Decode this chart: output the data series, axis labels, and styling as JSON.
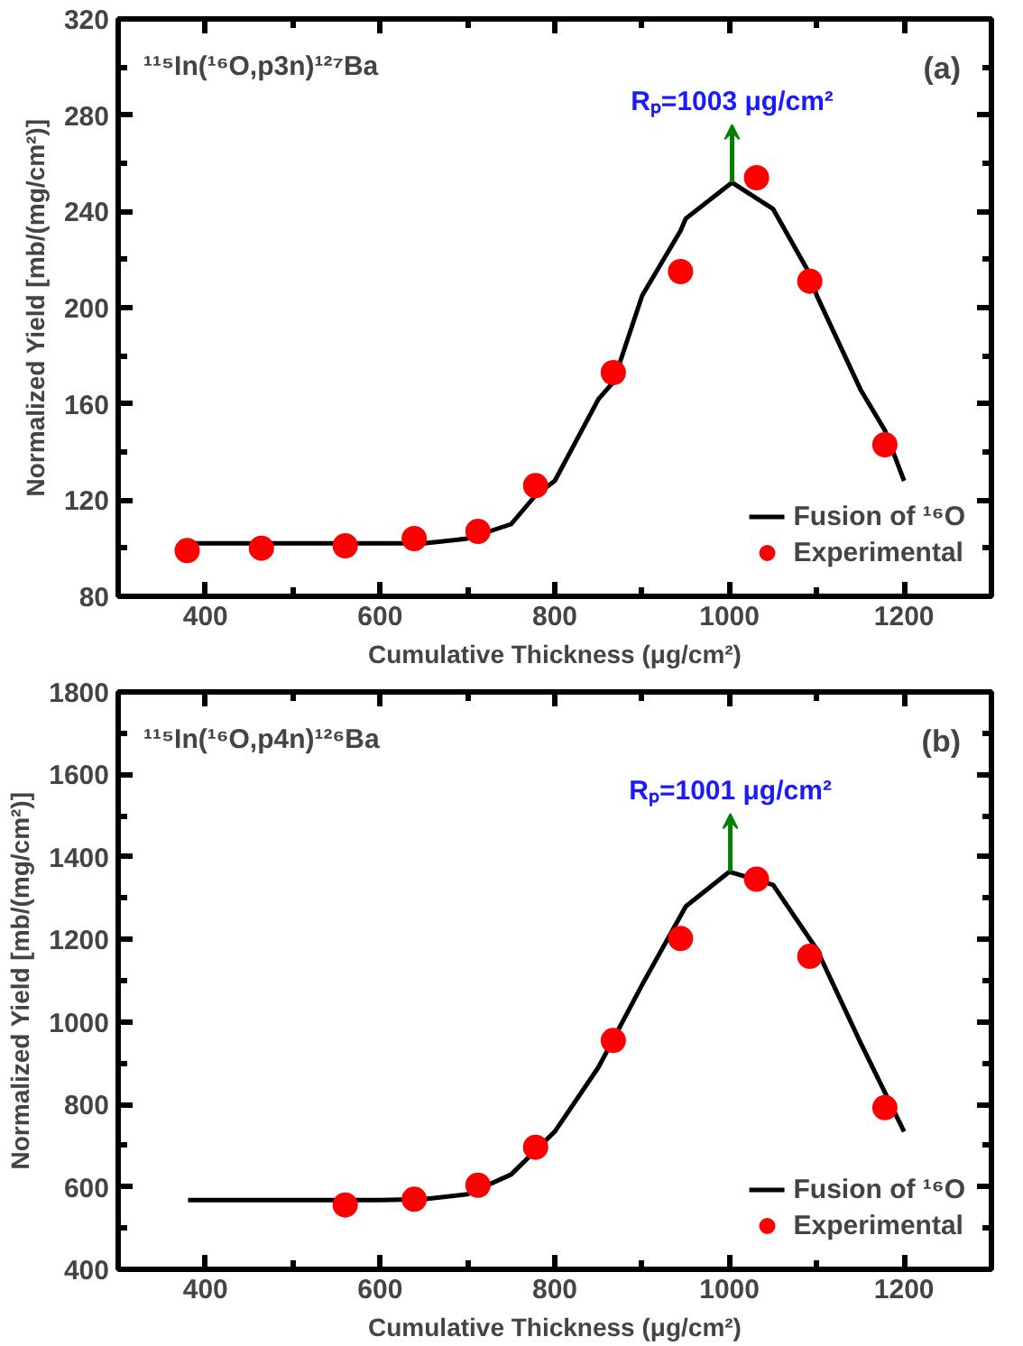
{
  "chart_data": [
    {
      "type": "scatter",
      "xlabel": "Cumulative Thickness (μg/cm²)",
      "ylabel": "Normalized Yield [mb/(mg/cm²)]",
      "xlim": [
        300,
        1300
      ],
      "xticks": [
        {
          "value": 300,
          "label": null
        },
        400,
        {
          "value": 500,
          "label": null
        },
        600,
        {
          "value": 700,
          "label": null
        },
        800,
        {
          "value": 900,
          "label": null
        },
        1000,
        {
          "value": 1100,
          "label": null
        },
        1200,
        {
          "value": 1300,
          "label": null
        }
      ],
      "ylim": [
        80,
        320
      ],
      "yticks": [
        80,
        {
          "value": 100,
          "label": null
        },
        120,
        {
          "value": 140,
          "label": null
        },
        160,
        {
          "value": 180,
          "label": null
        },
        200,
        {
          "value": 220,
          "label": null
        },
        240,
        {
          "value": 260,
          "label": null
        },
        280,
        {
          "value": 300,
          "label": null
        },
        320
      ],
      "grid": false,
      "legend": "bottom right",
      "series": [
        {
          "name": "Fusion of ¹⁶O",
          "type": "line",
          "color": "#000000",
          "marker": "none",
          "line_style": "solid",
          "x": [
            380,
            500,
            600,
            650,
            700,
            750,
            778,
            800,
            850,
            867,
            900,
            944,
            950,
            1003,
            1050,
            1092,
            1100,
            1150,
            1178,
            1200
          ],
          "values": [
            102,
            102,
            102,
            102,
            104,
            110,
            122,
            128,
            162,
            169,
            205,
            232,
            237,
            252,
            241,
            214,
            205,
            166,
            149,
            128
          ]
        },
        {
          "name": "Experimental",
          "color": "#ff0000",
          "marker": "circle",
          "x": [
            379,
            464,
            560,
            639,
            712,
            778,
            867,
            944,
            1031,
            1092,
            1178
          ],
          "values": [
            99,
            100,
            101,
            104,
            107,
            126,
            173,
            215,
            254,
            211,
            143
          ]
        }
      ],
      "annotations": [
        "¹¹⁵In(¹⁶O,p3n)¹²⁷Ba",
        "(a)",
        {
          "text": "Rₚ=1003 μg/cm²",
          "x": 1003,
          "y": 252
        }
      ]
    },
    {
      "type": "scatter",
      "xlabel": "Cumulative Thickness (μg/cm²)",
      "ylabel": "Normalized Yield [mb/(mg/cm²)]",
      "xlim": [
        300,
        1300
      ],
      "xticks": [
        {
          "value": 300,
          "label": null
        },
        400,
        {
          "value": 500,
          "label": null
        },
        600,
        {
          "value": 700,
          "label": null
        },
        800,
        {
          "value": 900,
          "label": null
        },
        1000,
        {
          "value": 1100,
          "label": null
        },
        1200,
        {
          "value": 1300,
          "label": null
        }
      ],
      "ylim": [
        400,
        1800
      ],
      "yticks": [
        400,
        {
          "value": 500,
          "label": null
        },
        600,
        {
          "value": 700,
          "label": null
        },
        800,
        {
          "value": 900,
          "label": null
        },
        1000,
        {
          "value": 1100,
          "label": null
        },
        1200,
        {
          "value": 1300,
          "label": null
        },
        1400,
        {
          "value": 1500,
          "label": null
        },
        1600,
        {
          "value": 1700,
          "label": null
        },
        1800
      ],
      "grid": false,
      "legend": "bottom right",
      "series": [
        {
          "name": "Fusion of ¹⁶O",
          "type": "line",
          "color": "#000000",
          "marker": "none",
          "line_style": "solid",
          "x": [
            380,
            500,
            600,
            650,
            700,
            750,
            800,
            850,
            900,
            950,
            1000,
            1050,
            1100,
            1150,
            1200
          ],
          "values": [
            568,
            568,
            568,
            570,
            582,
            630,
            734,
            890,
            1090,
            1280,
            1364,
            1332,
            1176,
            950,
            734
          ]
        },
        {
          "name": "Experimental",
          "color": "#ff0000",
          "marker": "circle",
          "x": [
            560,
            639,
            712,
            778,
            867,
            944,
            1031,
            1092,
            1178
          ],
          "values": [
            556,
            570,
            604,
            696,
            955,
            1202,
            1346,
            1159,
            792
          ]
        }
      ],
      "annotations": [
        "¹¹⁵In(¹⁶O,p4n)¹²⁶Ba",
        "(b)",
        {
          "text": "Rₚ=1001 μg/cm²",
          "x": 1001,
          "y": 1364
        }
      ]
    }
  ]
}
